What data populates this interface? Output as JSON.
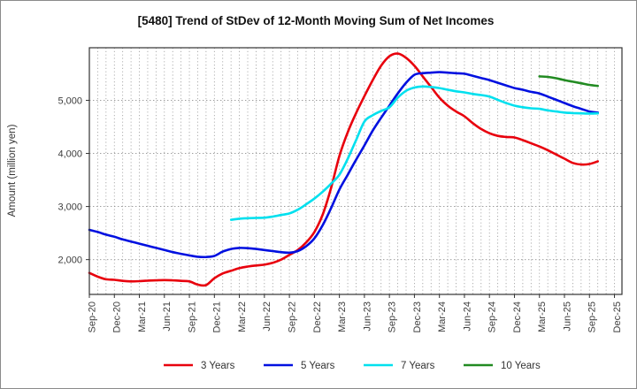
{
  "title": "[5480]  Trend of StDev of 12-Month Moving Sum of Net Incomes",
  "y_axis_title": "Amount (million yen)",
  "chart_data": {
    "type": "line",
    "title": "[5480]  Trend of StDev of 12-Month Moving Sum of Net Incomes",
    "xlabel": "",
    "ylabel": "Amount (million yen)",
    "grid": true,
    "legend_position": "bottom",
    "x_tick_labels": [
      "Sep-20",
      "Dec-20",
      "Mar-21",
      "Jun-21",
      "Sep-21",
      "Dec-21",
      "Mar-22",
      "Jun-22",
      "Sep-22",
      "Dec-22",
      "Mar-23",
      "Jun-23",
      "Sep-23",
      "Dec-23",
      "Mar-24",
      "Jun-24",
      "Sep-24",
      "Dec-24",
      "Mar-25",
      "Jun-25",
      "Sep-25",
      "Dec-25"
    ],
    "x_tick_months": [
      0,
      3,
      6,
      9,
      12,
      15,
      18,
      21,
      24,
      27,
      30,
      33,
      36,
      39,
      42,
      45,
      48,
      51,
      54,
      57,
      60,
      63
    ],
    "y_ticks": [
      {
        "label": "2,000",
        "value": 2000
      },
      {
        "label": "3,000",
        "value": 3000
      },
      {
        "label": "4,000",
        "value": 4000
      },
      {
        "label": "5,000",
        "value": 5000
      }
    ],
    "ylim": [
      1345,
      5990
    ],
    "xlim_months": [
      0,
      63.9
    ],
    "x_unit": "months since Sep-20, monthly data",
    "series": [
      {
        "name": "3 Years",
        "color": "#e8000d",
        "points": [
          [
            0,
            1750
          ],
          [
            1,
            1680
          ],
          [
            2,
            1630
          ],
          [
            3,
            1620
          ],
          [
            4,
            1600
          ],
          [
            5,
            1590
          ],
          [
            6,
            1595
          ],
          [
            7,
            1605
          ],
          [
            8,
            1610
          ],
          [
            9,
            1615
          ],
          [
            10,
            1610
          ],
          [
            11,
            1600
          ],
          [
            12,
            1590
          ],
          [
            13,
            1530
          ],
          [
            14,
            1520
          ],
          [
            15,
            1650
          ],
          [
            16,
            1740
          ],
          [
            17,
            1790
          ],
          [
            18,
            1840
          ],
          [
            19,
            1870
          ],
          [
            20,
            1890
          ],
          [
            21,
            1905
          ],
          [
            22,
            1940
          ],
          [
            23,
            2000
          ],
          [
            24,
            2090
          ],
          [
            25,
            2180
          ],
          [
            26,
            2320
          ],
          [
            27,
            2520
          ],
          [
            28,
            2850
          ],
          [
            29,
            3350
          ],
          [
            30,
            3950
          ],
          [
            31,
            4400
          ],
          [
            32,
            4760
          ],
          [
            33,
            5080
          ],
          [
            34,
            5380
          ],
          [
            35,
            5650
          ],
          [
            36,
            5830
          ],
          [
            37,
            5880
          ],
          [
            38,
            5800
          ],
          [
            39,
            5650
          ],
          [
            40,
            5450
          ],
          [
            41,
            5250
          ],
          [
            42,
            5050
          ],
          [
            43,
            4900
          ],
          [
            44,
            4790
          ],
          [
            45,
            4700
          ],
          [
            46,
            4570
          ],
          [
            47,
            4460
          ],
          [
            48,
            4380
          ],
          [
            49,
            4330
          ],
          [
            50,
            4310
          ],
          [
            51,
            4300
          ],
          [
            52,
            4250
          ],
          [
            53,
            4190
          ],
          [
            54,
            4130
          ],
          [
            55,
            4060
          ],
          [
            56,
            3980
          ],
          [
            57,
            3900
          ],
          [
            58,
            3820
          ],
          [
            59,
            3790
          ],
          [
            60,
            3800
          ],
          [
            61,
            3850
          ]
        ]
      },
      {
        "name": "5 Years",
        "color": "#0010e0",
        "points": [
          [
            0,
            2560
          ],
          [
            1,
            2520
          ],
          [
            2,
            2470
          ],
          [
            3,
            2430
          ],
          [
            4,
            2380
          ],
          [
            5,
            2340
          ],
          [
            6,
            2300
          ],
          [
            7,
            2260
          ],
          [
            8,
            2220
          ],
          [
            9,
            2180
          ],
          [
            10,
            2140
          ],
          [
            11,
            2110
          ],
          [
            12,
            2080
          ],
          [
            13,
            2055
          ],
          [
            14,
            2050
          ],
          [
            15,
            2070
          ],
          [
            16,
            2150
          ],
          [
            17,
            2200
          ],
          [
            18,
            2220
          ],
          [
            19,
            2215
          ],
          [
            20,
            2200
          ],
          [
            21,
            2180
          ],
          [
            22,
            2160
          ],
          [
            23,
            2140
          ],
          [
            24,
            2130
          ],
          [
            25,
            2160
          ],
          [
            26,
            2250
          ],
          [
            27,
            2400
          ],
          [
            28,
            2650
          ],
          [
            29,
            2970
          ],
          [
            30,
            3320
          ],
          [
            31,
            3600
          ],
          [
            32,
            3880
          ],
          [
            33,
            4150
          ],
          [
            34,
            4430
          ],
          [
            35,
            4670
          ],
          [
            36,
            4900
          ],
          [
            37,
            5130
          ],
          [
            38,
            5330
          ],
          [
            39,
            5480
          ],
          [
            40,
            5510
          ],
          [
            41,
            5520
          ],
          [
            42,
            5530
          ],
          [
            43,
            5520
          ],
          [
            44,
            5510
          ],
          [
            45,
            5500
          ],
          [
            46,
            5460
          ],
          [
            47,
            5420
          ],
          [
            48,
            5380
          ],
          [
            49,
            5330
          ],
          [
            50,
            5280
          ],
          [
            51,
            5230
          ],
          [
            52,
            5200
          ],
          [
            53,
            5160
          ],
          [
            54,
            5130
          ],
          [
            55,
            5070
          ],
          [
            56,
            5010
          ],
          [
            57,
            4950
          ],
          [
            58,
            4890
          ],
          [
            59,
            4840
          ],
          [
            60,
            4790
          ],
          [
            61,
            4770
          ]
        ]
      },
      {
        "name": "7 Years",
        "color": "#00e0ee",
        "points": [
          [
            17,
            2750
          ],
          [
            18,
            2770
          ],
          [
            19,
            2780
          ],
          [
            20,
            2785
          ],
          [
            21,
            2790
          ],
          [
            22,
            2810
          ],
          [
            23,
            2840
          ],
          [
            24,
            2870
          ],
          [
            25,
            2940
          ],
          [
            26,
            3040
          ],
          [
            27,
            3150
          ],
          [
            28,
            3280
          ],
          [
            29,
            3430
          ],
          [
            30,
            3600
          ],
          [
            31,
            3900
          ],
          [
            32,
            4250
          ],
          [
            33,
            4600
          ],
          [
            34,
            4720
          ],
          [
            35,
            4800
          ],
          [
            36,
            4870
          ],
          [
            37,
            5050
          ],
          [
            38,
            5180
          ],
          [
            39,
            5240
          ],
          [
            40,
            5260
          ],
          [
            41,
            5250
          ],
          [
            42,
            5230
          ],
          [
            43,
            5200
          ],
          [
            44,
            5170
          ],
          [
            45,
            5150
          ],
          [
            46,
            5120
          ],
          [
            47,
            5100
          ],
          [
            48,
            5070
          ],
          [
            49,
            5010
          ],
          [
            50,
            4950
          ],
          [
            51,
            4900
          ],
          [
            52,
            4870
          ],
          [
            53,
            4850
          ],
          [
            54,
            4840
          ],
          [
            55,
            4810
          ],
          [
            56,
            4790
          ],
          [
            57,
            4770
          ],
          [
            58,
            4760
          ],
          [
            59,
            4755
          ],
          [
            60,
            4750
          ],
          [
            61,
            4755
          ]
        ]
      },
      {
        "name": "10 Years",
        "color": "#228b22",
        "points": [
          [
            54,
            5450
          ],
          [
            55,
            5440
          ],
          [
            56,
            5415
          ],
          [
            57,
            5380
          ],
          [
            58,
            5350
          ],
          [
            59,
            5320
          ],
          [
            60,
            5290
          ],
          [
            61,
            5270
          ]
        ]
      }
    ]
  }
}
